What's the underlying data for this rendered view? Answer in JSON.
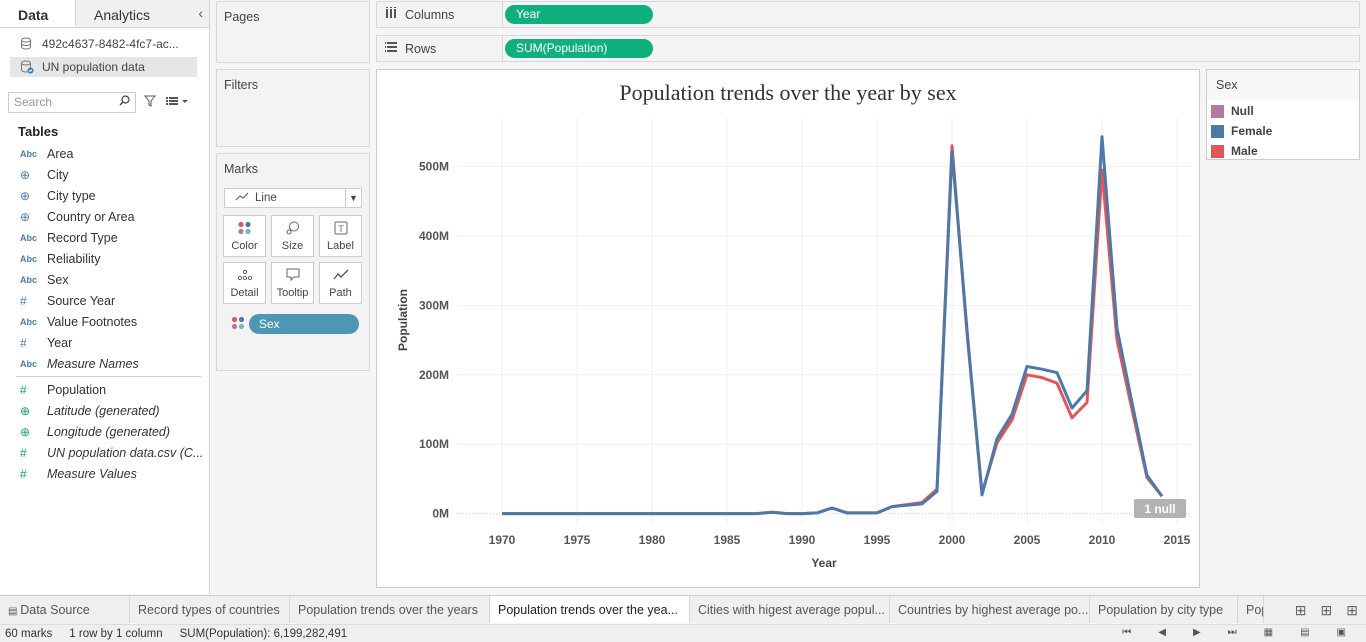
{
  "left_pane": {
    "tabs": [
      "Data",
      "Analytics"
    ],
    "datasources": [
      "492c4637-8482-4fc7-ac...",
      "UN population data"
    ],
    "search_placeholder": "Search",
    "tables_label": "Tables",
    "dimension_fields": [
      {
        "type": "abc",
        "name": "Area"
      },
      {
        "type": "globe",
        "name": "City"
      },
      {
        "type": "globe",
        "name": "City type"
      },
      {
        "type": "globe",
        "name": "Country or Area"
      },
      {
        "type": "abc",
        "name": "Record Type"
      },
      {
        "type": "abc",
        "name": "Reliability"
      },
      {
        "type": "abc",
        "name": "Sex"
      },
      {
        "type": "hash",
        "name": "Source Year"
      },
      {
        "type": "abc",
        "name": "Value Footnotes"
      },
      {
        "type": "hash",
        "name": "Year"
      },
      {
        "type": "abc",
        "name": "Measure Names",
        "italic": true
      }
    ],
    "measure_fields": [
      {
        "type": "hash",
        "name": "Population"
      },
      {
        "type": "globe",
        "name": "Latitude (generated)",
        "italic": true
      },
      {
        "type": "globe",
        "name": "Longitude (generated)",
        "italic": true
      },
      {
        "type": "hash",
        "name": "UN population data.csv (C...",
        "italic": true
      },
      {
        "type": "hash",
        "name": "Measure Values",
        "italic": true
      }
    ]
  },
  "cards": {
    "pages": "Pages",
    "filters": "Filters",
    "marks": "Marks",
    "mark_type": "Line",
    "mark_buttons": [
      "Color",
      "Size",
      "Label",
      "Detail",
      "Tooltip",
      "Path"
    ],
    "color_pill": "Sex"
  },
  "shelves": {
    "columns_label": "Columns",
    "columns_pill": "Year",
    "rows_label": "Rows",
    "rows_pill": "SUM(Population)"
  },
  "legend": {
    "title": "Sex",
    "items": [
      {
        "name": "Null",
        "color": "#b07aa1"
      },
      {
        "name": "Female",
        "color": "#4e79a7"
      },
      {
        "name": "Male",
        "color": "#e15759"
      }
    ]
  },
  "chart_data": {
    "type": "line",
    "title": "Population trends over the year by sex",
    "xlabel": "Year",
    "ylabel": "Population",
    "xlim": [
      1967,
      2016
    ],
    "ylim": [
      -15,
      570
    ],
    "x_ticks": [
      1970,
      1975,
      1980,
      1985,
      1990,
      1995,
      2000,
      2005,
      2010,
      2015
    ],
    "y_ticks": [
      0,
      100,
      200,
      300,
      400,
      500
    ],
    "y_tick_labels": [
      "0M",
      "100M",
      "200M",
      "300M",
      "400M",
      "500M"
    ],
    "x": [
      1970,
      1971,
      1972,
      1973,
      1974,
      1975,
      1976,
      1977,
      1978,
      1979,
      1980,
      1981,
      1982,
      1983,
      1984,
      1985,
      1986,
      1987,
      1988,
      1989,
      1990,
      1991,
      1992,
      1993,
      1994,
      1995,
      1996,
      1997,
      1998,
      1999,
      2000,
      2001,
      2002,
      2003,
      2004,
      2005,
      2006,
      2007,
      2008,
      2009,
      2010,
      2011,
      2012,
      2013,
      2014
    ],
    "series": [
      {
        "name": "Male",
        "color": "#e15759",
        "values": [
          0,
          0,
          0,
          0,
          0,
          0,
          0,
          0,
          0,
          0,
          0,
          0,
          0,
          0,
          0,
          0,
          0,
          0,
          2,
          0,
          0,
          1,
          8,
          1,
          1,
          1,
          10,
          13,
          16,
          35,
          530,
          260,
          30,
          102,
          135,
          200,
          196,
          188,
          138,
          160,
          495,
          250,
          150,
          52,
          25
        ]
      },
      {
        "name": "Female",
        "color": "#4e79a7",
        "values": [
          0,
          0,
          0,
          0,
          0,
          0,
          0,
          0,
          0,
          0,
          0,
          0,
          0,
          0,
          0,
          0,
          0,
          0,
          2,
          0,
          0,
          1,
          8,
          1,
          1,
          1,
          10,
          12,
          14,
          32,
          522,
          265,
          27,
          108,
          143,
          212,
          208,
          203,
          152,
          177,
          543,
          267,
          160,
          55,
          25
        ]
      }
    ],
    "null_indicator": "1 null"
  },
  "sheet_tabs": [
    "Data Source",
    "Record types of countries",
    "Population trends over the years",
    "Population trends over the yea...",
    "Cities with higest average popul...",
    "Countries by highest average po...",
    "Population by  city type",
    "Pop"
  ],
  "active_tab_index": 3,
  "status": {
    "marks": "60 marks",
    "layout": "1 row by 1 column",
    "sum": "SUM(Population): 6,199,282,491"
  }
}
